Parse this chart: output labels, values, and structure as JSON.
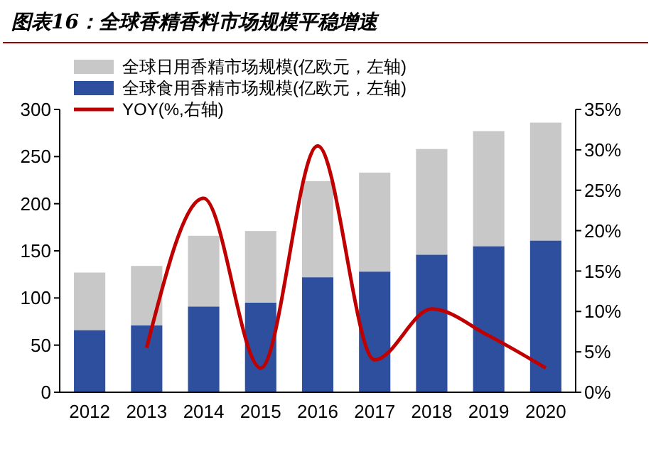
{
  "chart_data": {
    "type": "bar",
    "title": "图表16：全球香精香料市场规模平稳增速",
    "stacked": true,
    "categories": [
      "2012",
      "2013",
      "2014",
      "2015",
      "2016",
      "2017",
      "2018",
      "2019",
      "2020"
    ],
    "series": [
      {
        "name": "全球食用香精市场规模(亿欧元，左轴)",
        "color": "#2e4f9e",
        "values": [
          66,
          71,
          91,
          95,
          122,
          128,
          146,
          155,
          161
        ]
      },
      {
        "name": "全球日用香精市场规模(亿欧元，左轴)",
        "color": "#c8c8c8",
        "values": [
          61,
          63,
          75,
          76,
          102,
          105,
          112,
          122,
          125
        ]
      },
      {
        "name": "YOY(%,右轴)",
        "type": "line",
        "axis": "y2",
        "color": "#c00000",
        "values": [
          null,
          5.5,
          24,
          3,
          30.5,
          4,
          10.3,
          7,
          3
        ]
      }
    ],
    "ylim": [
      0,
      300
    ],
    "yticks": [
      0,
      50,
      100,
      150,
      200,
      250,
      300
    ],
    "y2lim": [
      0,
      35
    ],
    "y2ticks": [
      {
        "value": 0,
        "label": "0%"
      },
      {
        "value": 5,
        "label": "5%"
      },
      {
        "value": 10,
        "label": "10%"
      },
      {
        "value": 15,
        "label": "15%"
      },
      {
        "value": 20,
        "label": "20%"
      },
      {
        "value": 25,
        "label": "25%"
      },
      {
        "value": 30,
        "label": "30%"
      },
      {
        "value": 35,
        "label": "35%"
      }
    ],
    "legend": "top left",
    "grid": false
  }
}
